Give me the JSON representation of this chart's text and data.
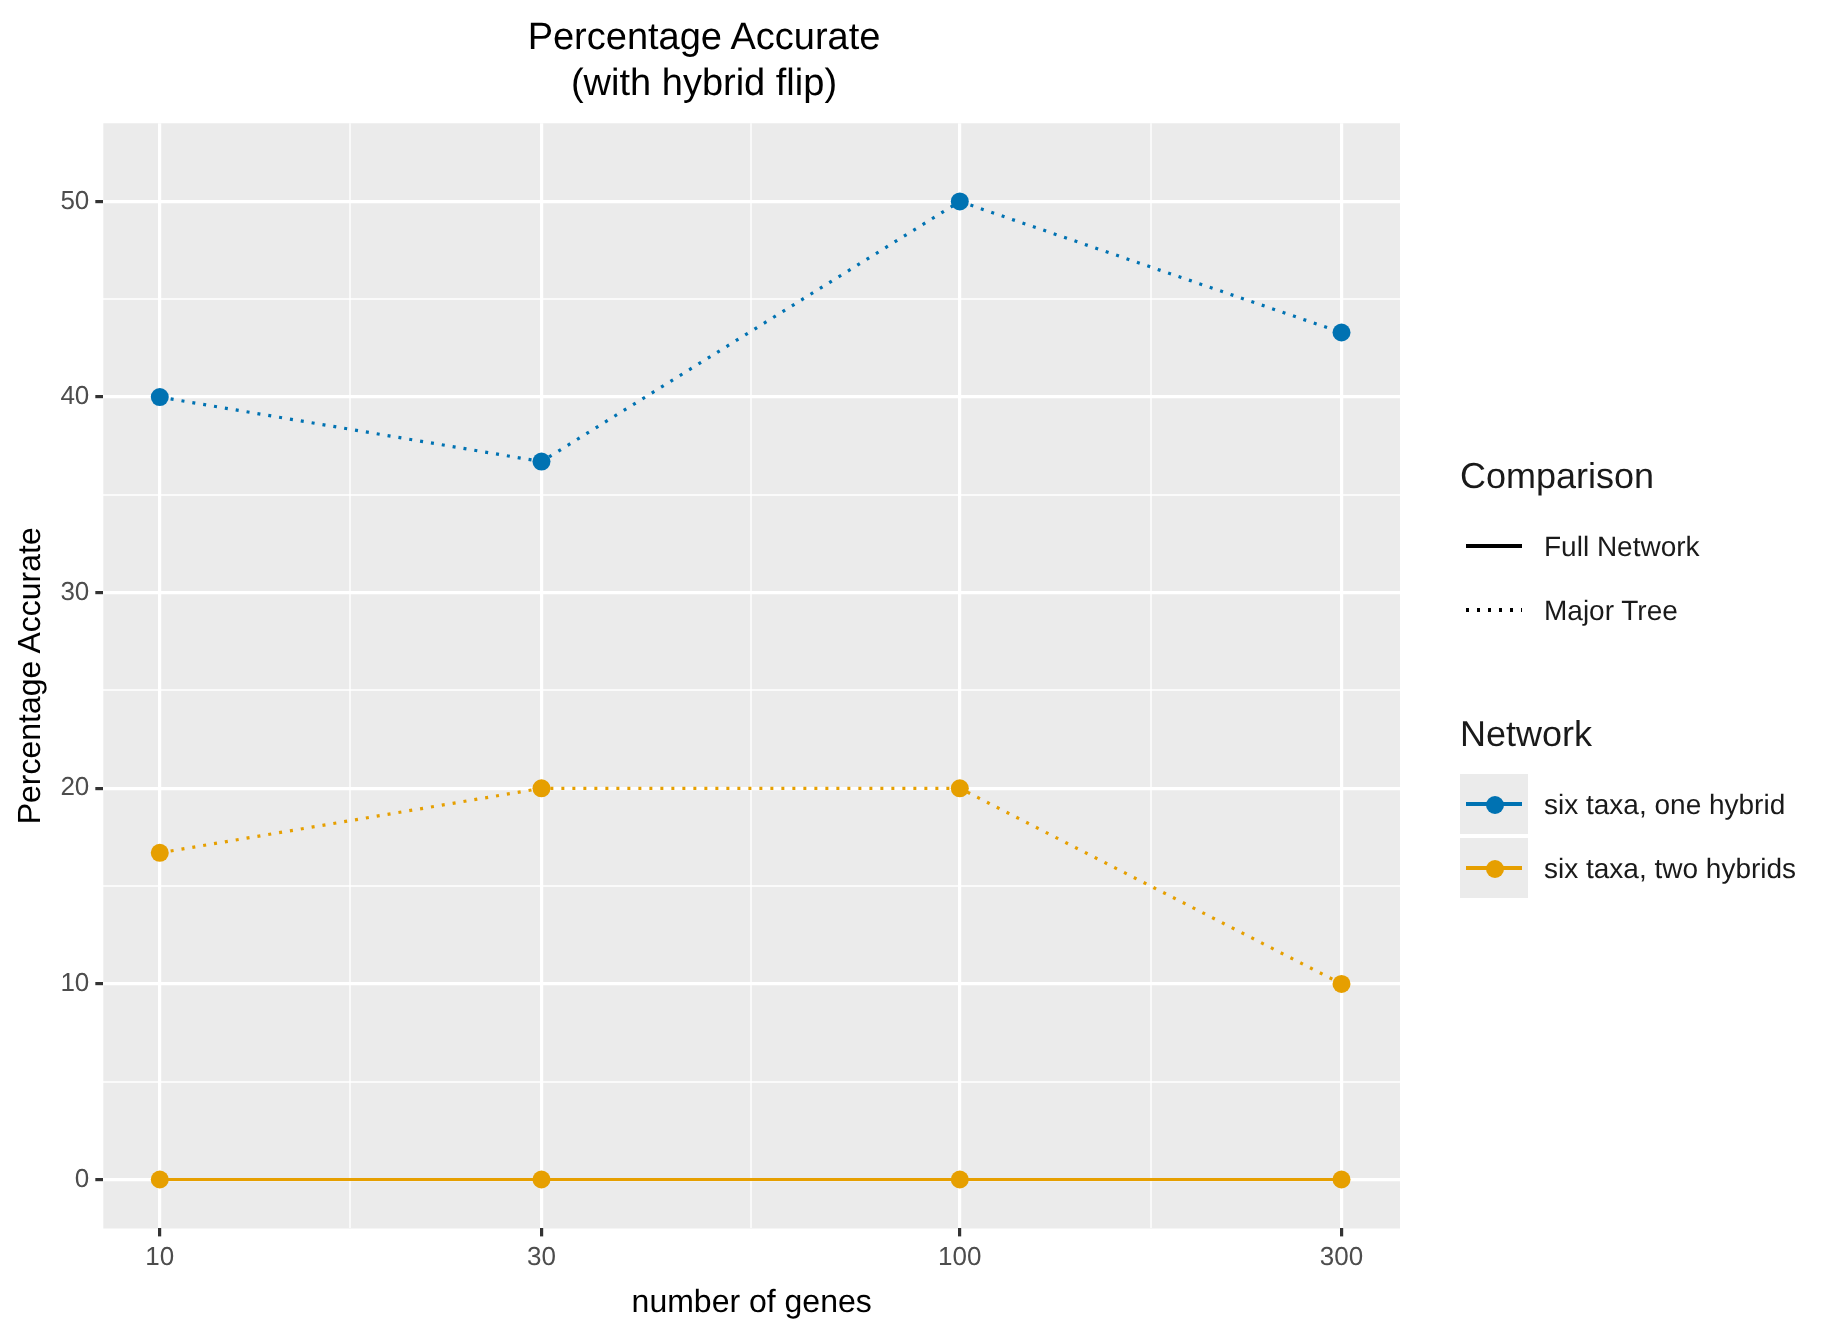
{
  "chart_data": {
    "type": "line",
    "title": "Percentage Accurate\n(with hybrid flip)",
    "xlabel": "number of genes",
    "ylabel": "Percentage Accurate",
    "legend_title": "Network",
    "x": [
      10,
      30,
      100,
      300
    ],
    "log": "x",
    "xlim": [
      8.5,
      355
    ],
    "xticks": [
      10,
      {
        "value": 17.3,
        "label": null
      },
      30,
      {
        "value": 54.8,
        "label": null
      },
      100,
      {
        "value": 173.2,
        "label": null
      },
      300
    ],
    "ylim": [
      -2.5,
      54
    ],
    "yticks": [
      0,
      {
        "value": 5,
        "label": null
      },
      10,
      {
        "value": 15,
        "label": null
      },
      20,
      {
        "value": 25,
        "label": null
      },
      30,
      {
        "value": 35,
        "label": null
      },
      40,
      {
        "value": 45,
        "label": null
      },
      50
    ],
    "grid": true,
    "legend": "right",
    "marker": "circle",
    "annotations": [
      "Comparison",
      "Full Network",
      "Major Tree"
    ],
    "series": [
      {
        "color": "#e69f00",
        "line_style": "solid",
        "values": [
          0,
          0,
          0,
          0
        ]
      },
      {
        "name": "six taxa, one hybrid",
        "color": "#0072b2",
        "line_style": "dotted",
        "values": [
          40,
          36.7,
          50,
          43.3
        ]
      },
      {
        "name": "six taxa, two hybrids",
        "color": "#e69f00",
        "line_style": "dotted",
        "values": [
          16.7,
          20,
          20,
          10
        ]
      }
    ]
  }
}
